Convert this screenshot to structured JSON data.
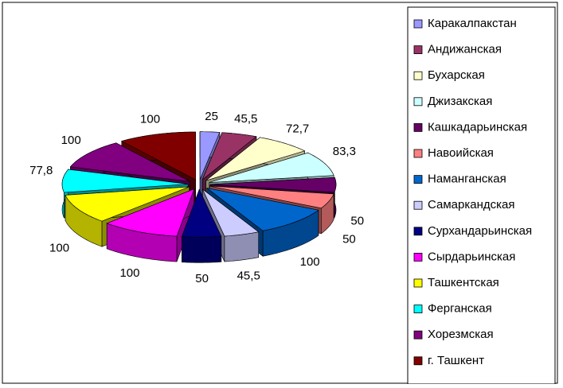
{
  "chart_data": {
    "type": "pie",
    "categories": [
      "Каракалпакстан",
      "Андижанская",
      "Бухарская",
      "Джизакская",
      "Кашкадарьинская",
      "Навоийская",
      "Наманганская",
      "Самаркандская",
      "Сурхандарьинская",
      "Сырдарьинская",
      "Ташкентская",
      "Ферганская",
      "Хорезмская",
      "г. Ташкент"
    ],
    "values": [
      25,
      45.5,
      72.7,
      83.3,
      50,
      50,
      100,
      45.5,
      50,
      100,
      100,
      77.8,
      100,
      100
    ],
    "value_labels": [
      "25",
      "45,5",
      "72,7",
      "83,3",
      "50",
      "50",
      "100",
      "45,5",
      "50",
      "100",
      "100",
      "77,8",
      "100",
      "100"
    ],
    "colors": [
      "#9999ff",
      "#993366",
      "#ffffcc",
      "#ccffff",
      "#660066",
      "#ff8080",
      "#0066cc",
      "#ccccff",
      "#000080",
      "#ff00ff",
      "#ffff00",
      "#00ffff",
      "#800080",
      "#800000"
    ],
    "legend": "right"
  }
}
